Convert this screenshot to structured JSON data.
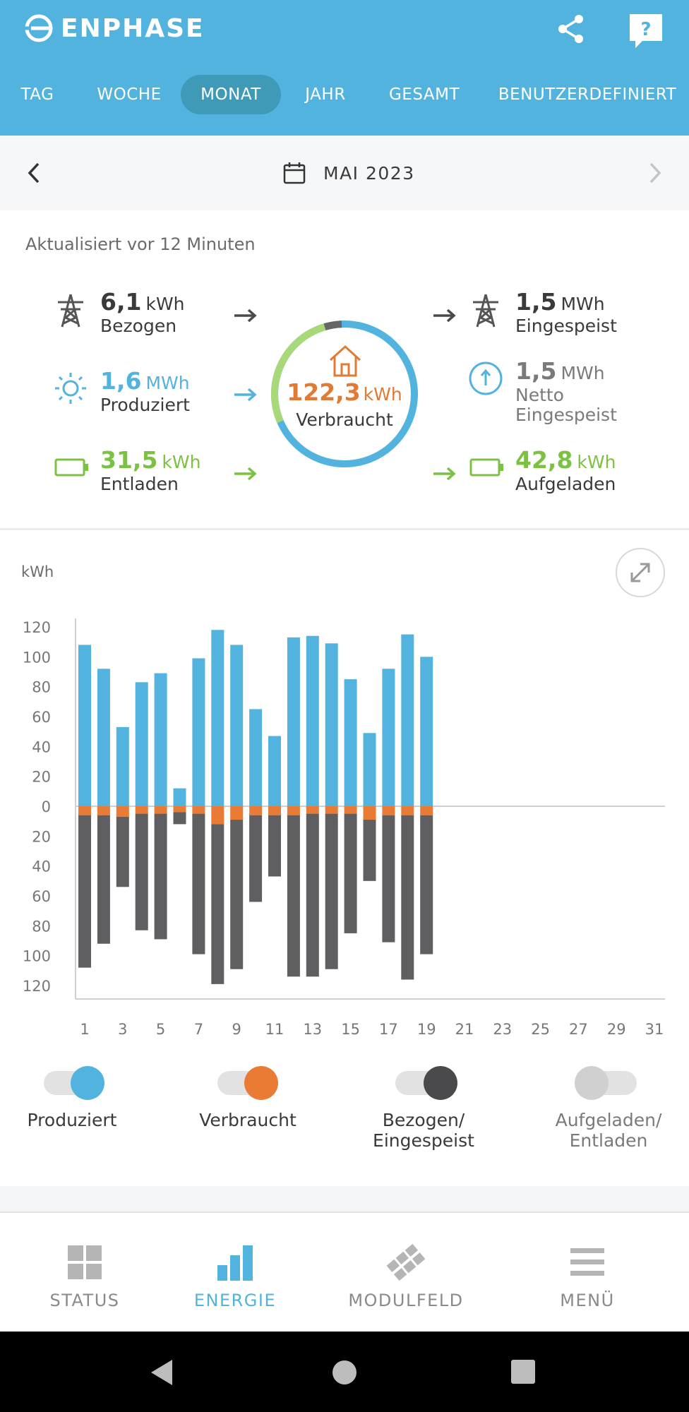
{
  "header": {
    "brand": "ENPHASE",
    "share_icon": "share-icon",
    "help_icon": "help-icon",
    "tabs": [
      {
        "label": "TAG",
        "active": false
      },
      {
        "label": "WOCHE",
        "active": false
      },
      {
        "label": "MONAT",
        "active": true
      },
      {
        "label": "JAHR",
        "active": false
      },
      {
        "label": "GESAMT",
        "active": false
      },
      {
        "label": "BENUTZERDEFINIERT",
        "active": false
      }
    ]
  },
  "period": {
    "label": "MAI 2023"
  },
  "summary": {
    "updated": "Aktualisiert vor 12 Minuten",
    "bezogen": {
      "value": "6,1",
      "unit": "kWh",
      "label": "Bezogen"
    },
    "produziert": {
      "value": "1,6",
      "unit": "MWh",
      "label": "Produziert"
    },
    "entladen": {
      "value": "31,5",
      "unit": "kWh",
      "label": "Entladen"
    },
    "eingespeist": {
      "value": "1,5",
      "unit": "MWh",
      "label": "Eingespeist"
    },
    "netto": {
      "value": "1,5",
      "unit": "MWh",
      "label_line1": "Netto",
      "label_line2": "Eingespeist"
    },
    "aufgeladen": {
      "value": "42,8",
      "unit": "kWh",
      "label": "Aufgeladen"
    },
    "verbraucht": {
      "value": "122,3",
      "unit": "kWh",
      "label": "Verbraucht"
    }
  },
  "colors": {
    "produced": "#52b4de",
    "consumed": "#e97b35",
    "grid": "#5f5f61",
    "battery": "#7cc242",
    "header": "#52b4de"
  },
  "chart_data": {
    "type": "bar",
    "ylabel": "kWh",
    "y_ticks_top": [
      "120",
      "100",
      "80",
      "60",
      "40",
      "20",
      "0"
    ],
    "y_ticks_bottom": [
      "20",
      "40",
      "60",
      "80",
      "100",
      "120"
    ],
    "ylim": [
      -120,
      120
    ],
    "x_ticks": [
      "1",
      "3",
      "5",
      "7",
      "9",
      "11",
      "13",
      "15",
      "17",
      "19",
      "21",
      "23",
      "25",
      "27",
      "29",
      "31"
    ],
    "days": [
      1,
      2,
      3,
      4,
      5,
      6,
      7,
      8,
      9,
      10,
      11,
      12,
      13,
      14,
      15,
      16,
      17,
      18,
      19
    ],
    "series": [
      {
        "name": "Produziert",
        "values": [
          108,
          92,
          53,
          83,
          89,
          12,
          99,
          118,
          108,
          65,
          47,
          113,
          114,
          109,
          85,
          49,
          92,
          115,
          100
        ]
      },
      {
        "name": "Verbraucht",
        "values": [
          6,
          6,
          7,
          5,
          5,
          4,
          5,
          12,
          9,
          6,
          6,
          6,
          5,
          5,
          5,
          9,
          6,
          6,
          6
        ]
      },
      {
        "name": "Bezogen/Eingespeist",
        "values": [
          -108,
          -92,
          -54,
          -83,
          -89,
          -12,
          -99,
          -119,
          -109,
          -64,
          -47,
          -114,
          -114,
          -109,
          -85,
          -50,
          -91,
          -116,
          -99
        ]
      }
    ]
  },
  "toggles": [
    {
      "label_line1": "Produziert",
      "label_line2": "",
      "on": true,
      "color": "#52b4de"
    },
    {
      "label_line1": "Verbraucht",
      "label_line2": "",
      "on": true,
      "color": "#e97b35"
    },
    {
      "label_line1": "Bezogen/",
      "label_line2": "Eingespeist",
      "on": true,
      "color": "#4a4a4c"
    },
    {
      "label_line1": "Aufgeladen/",
      "label_line2": "Entladen",
      "on": false,
      "color": "#d0d0d0"
    }
  ],
  "bottom_nav": [
    {
      "label": "STATUS",
      "icon": "grid-icon",
      "active": false
    },
    {
      "label": "ENERGIE",
      "icon": "bar-chart-icon",
      "active": true
    },
    {
      "label": "MODULFELD",
      "icon": "panels-icon",
      "active": false
    },
    {
      "label": "MENÜ",
      "icon": "menu-icon",
      "active": false
    }
  ]
}
